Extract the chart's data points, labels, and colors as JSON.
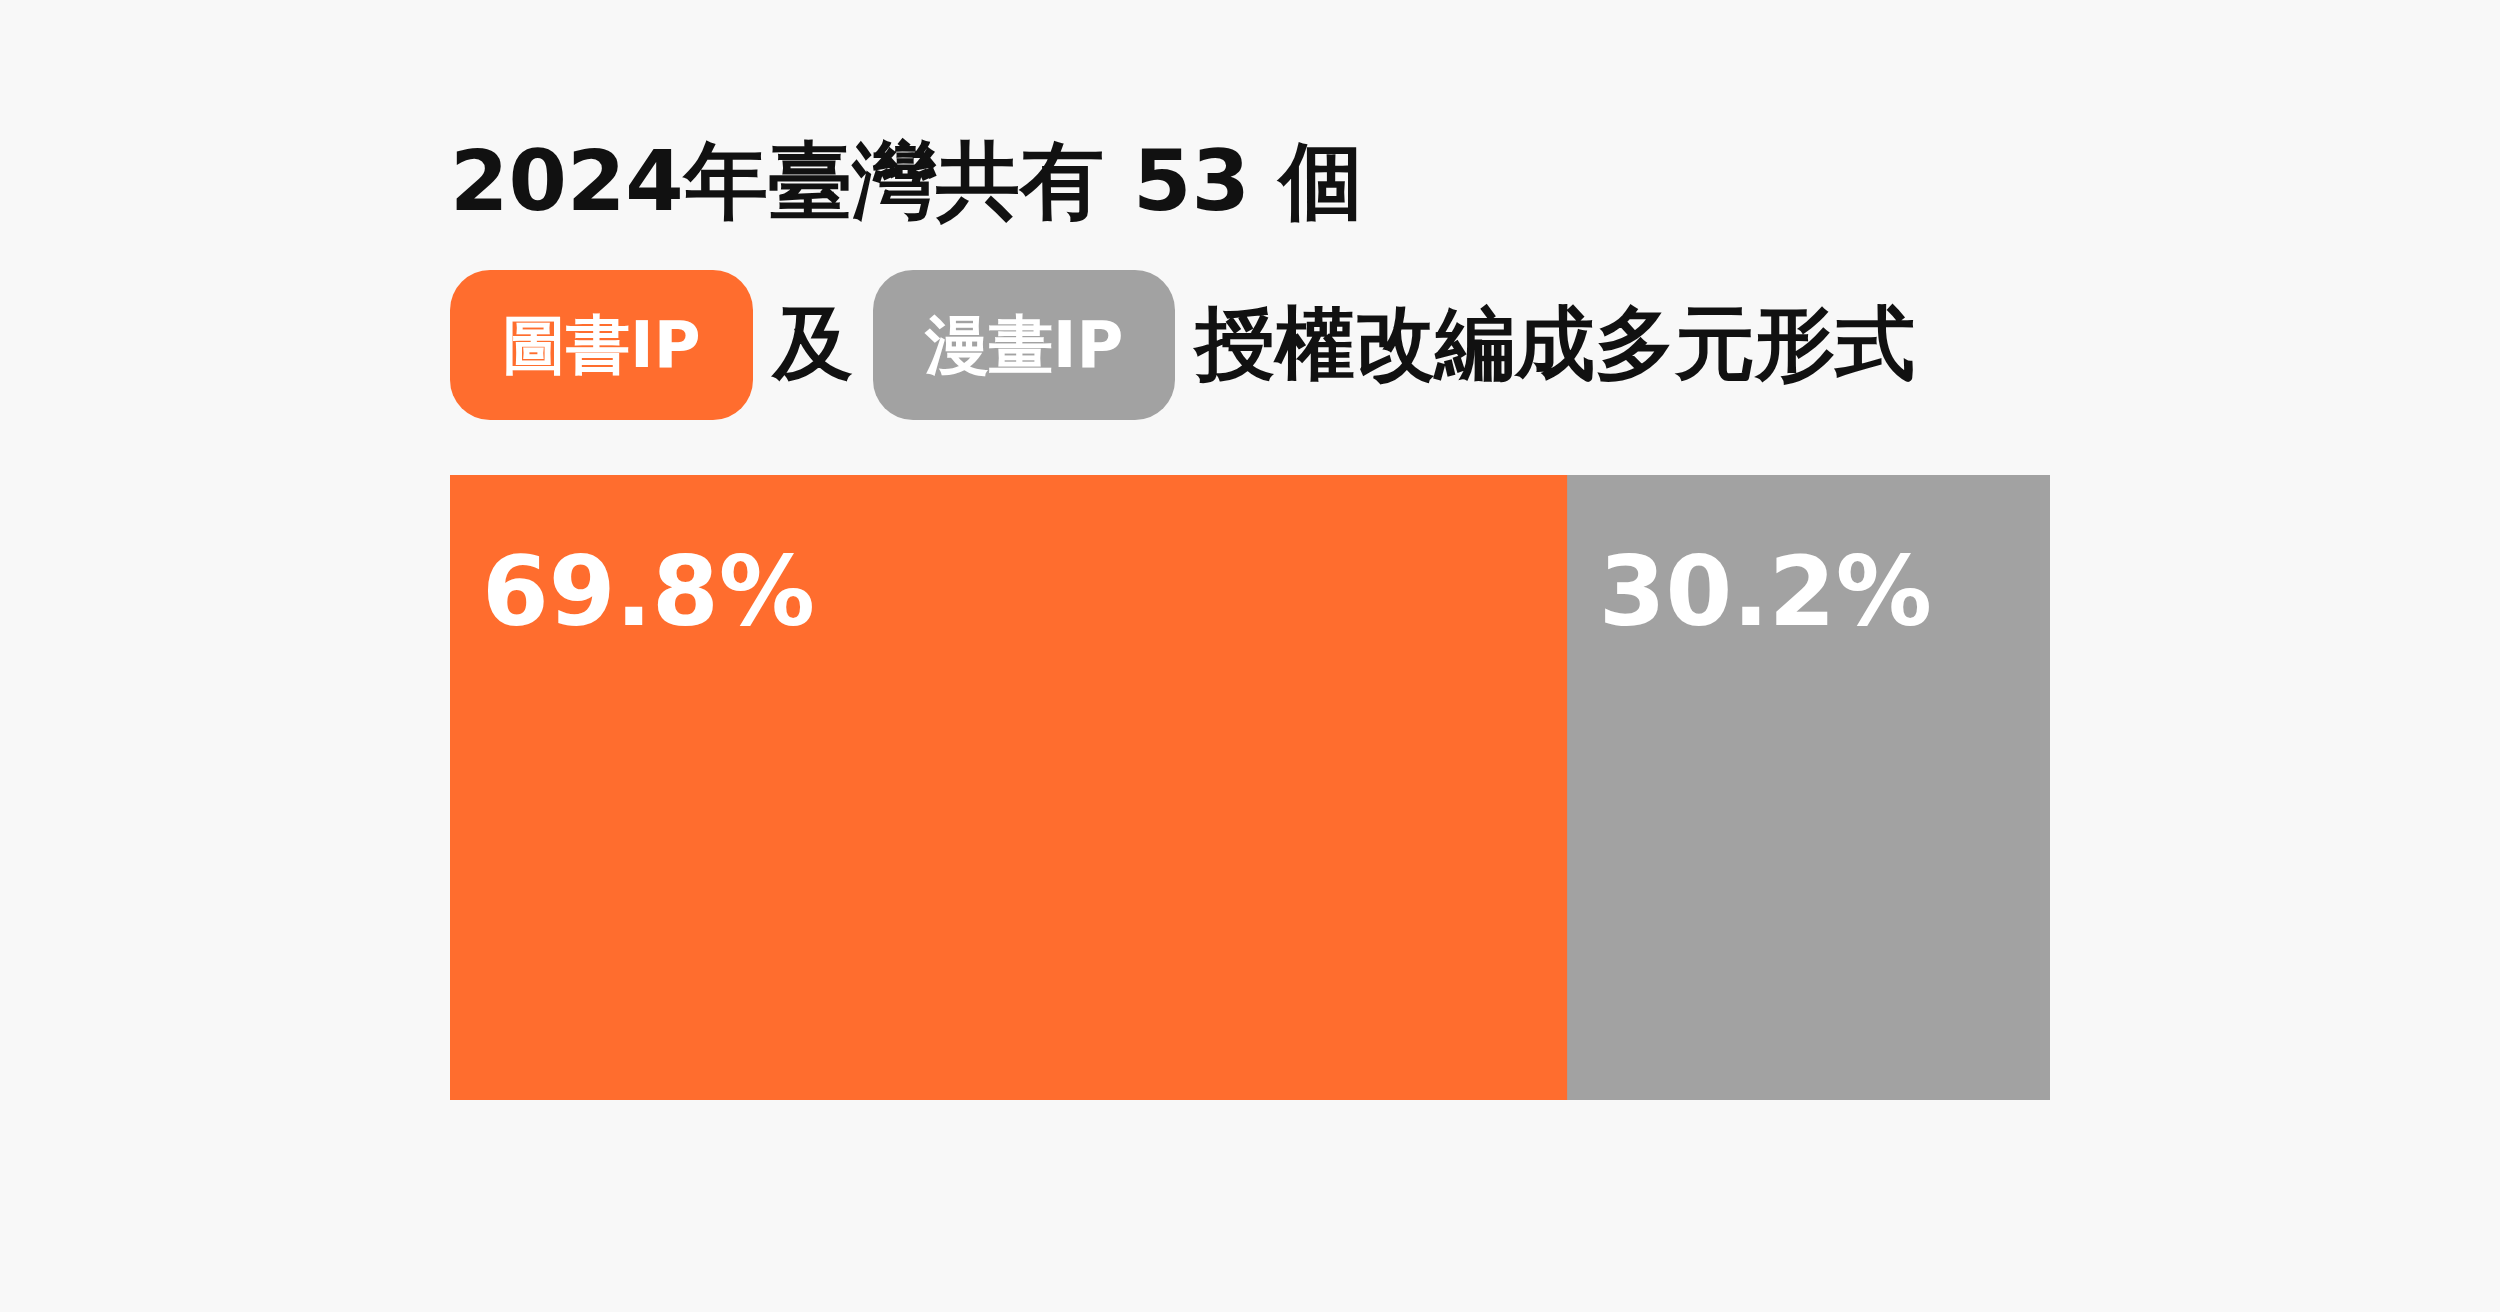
{
  "chart_data": {
    "type": "bar",
    "orientation": "horizontal",
    "stacked": true,
    "title": "2024年臺灣共有 53 個",
    "annotations": [
      "及",
      "授權改編成多元形式"
    ],
    "categories": [
      null
    ],
    "series": [
      {
        "name": "圖書IP",
        "color": "#ff6d2e",
        "values": [
          69.8
        ],
        "value_labels": [
          "69.8%"
        ]
      },
      {
        "name": "漫畫IP",
        "color": "#a2a2a2",
        "values": [
          30.2
        ],
        "value_labels": [
          "30.2%"
        ]
      }
    ],
    "tick_labels": false,
    "legend": "top"
  }
}
